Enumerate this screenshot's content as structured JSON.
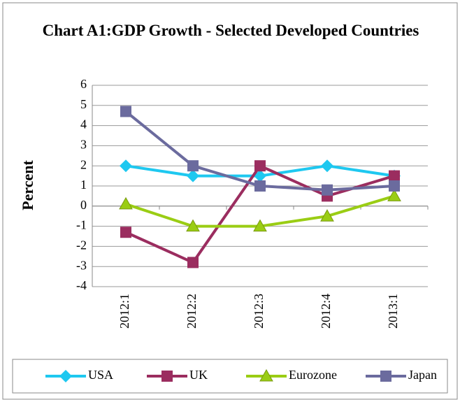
{
  "chart_data": {
    "type": "line",
    "title": "Chart A1:GDP Growth - Selected Developed Countries",
    "y_label": "Percent",
    "categories": [
      "2012:1",
      "2012:2",
      "2012:3",
      "2012:4",
      "2013:1"
    ],
    "series": [
      {
        "name": "USA",
        "color": "#1ec8f0",
        "marker": "diamond",
        "values": [
          2,
          1.5,
          1.5,
          2,
          1.5
        ]
      },
      {
        "name": "UK",
        "color": "#9b2d5f",
        "marker": "square",
        "values": [
          -1.3,
          -2.8,
          2,
          0.5,
          1.5
        ]
      },
      {
        "name": "Eurozone",
        "color": "#9acd14",
        "marker": "triangle",
        "values": [
          0.1,
          -1,
          -1,
          -0.5,
          0.5
        ]
      },
      {
        "name": "Japan",
        "color": "#6b6b9e",
        "marker": "square",
        "values": [
          4.7,
          2,
          1,
          0.8,
          1
        ]
      }
    ],
    "ylim": [
      -4,
      6
    ],
    "yticks": [
      -4,
      -3,
      -2,
      -1,
      0,
      1,
      2,
      3,
      4,
      5,
      6
    ],
    "grid": true,
    "legend": "bottom"
  }
}
